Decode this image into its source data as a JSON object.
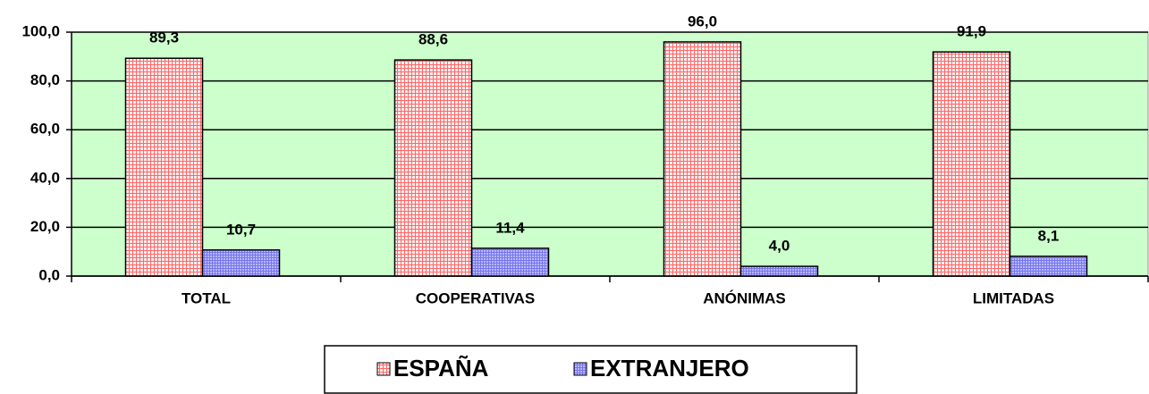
{
  "chart_data": {
    "type": "bar",
    "categories": [
      "TOTAL",
      "COOPERATIVAS",
      "ANÓNIMAS",
      "LIMITADAS"
    ],
    "series": [
      {
        "name": "ESPAÑA",
        "color": "#ff9999",
        "values": [
          89.3,
          88.6,
          96.0,
          91.9
        ],
        "value_labels": [
          "89,3",
          "88,6",
          "96,0",
          "91,9"
        ]
      },
      {
        "name": "EXTRANJERO",
        "color": "#9999ff",
        "values": [
          10.7,
          11.4,
          4.0,
          8.1
        ],
        "value_labels": [
          "10,7",
          "11,4",
          "4,0",
          "8,1"
        ]
      }
    ],
    "ylim": [
      0,
      100
    ],
    "yticks": [
      {
        "value": 0,
        "label": "0,0"
      },
      {
        "value": 20,
        "label": "20,0"
      },
      {
        "value": 40,
        "label": "40,0"
      },
      {
        "value": 60,
        "label": "60,0"
      },
      {
        "value": 80,
        "label": "80,0"
      },
      {
        "value": 100,
        "label": "100,0"
      }
    ],
    "grid": true,
    "background": "#ccffcc",
    "legend": "bottom"
  }
}
